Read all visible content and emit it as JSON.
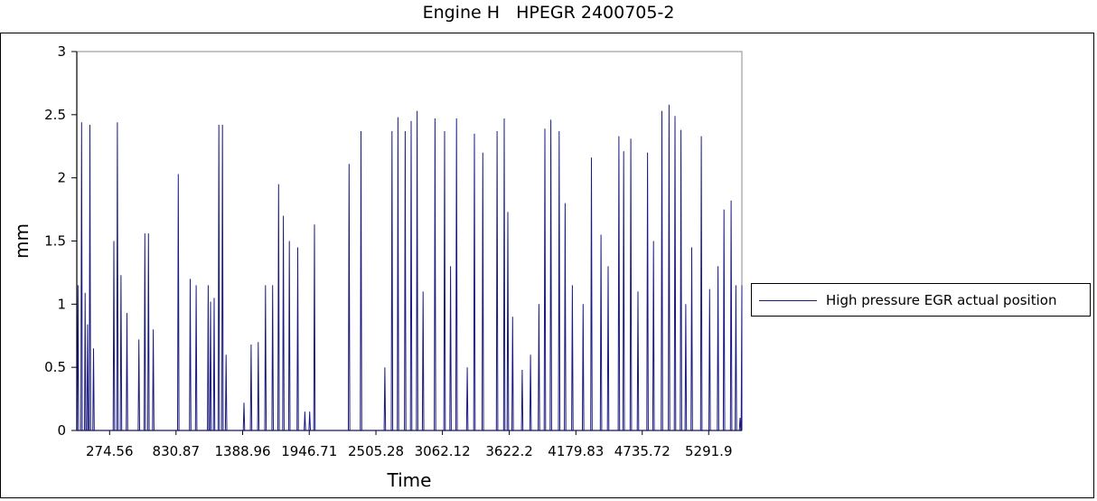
{
  "chart_data": {
    "type": "line",
    "title": "Engine H   HPEGR 2400705-2",
    "xlabel": "Time",
    "ylabel": "mm",
    "ylim": [
      0,
      3
    ],
    "yticks": [
      0,
      0.5,
      1,
      1.5,
      2,
      2.5,
      3
    ],
    "yticklabels": [
      "0",
      "0.5",
      "1",
      "1.5",
      "2",
      "2.5",
      "3"
    ],
    "xlim": [
      0,
      5570
    ],
    "xtick_positions": [
      274.56,
      830.87,
      1388.96,
      1946.71,
      2505.28,
      3062.12,
      3622.2,
      4179.83,
      4735.72,
      5291.9
    ],
    "xticklabels": [
      "274.56",
      "830.87",
      "1388.96",
      "1946.71",
      "2505.28",
      "3062.12",
      "3622.2",
      "4179.83",
      "4735.72",
      "5291.9"
    ],
    "grid": false,
    "legend_position": "right",
    "series": [
      {
        "name": "High pressure EGR actual position",
        "color": "#1a1a80",
        "peaks": [
          [
            10,
            1.15
          ],
          [
            40,
            2.44
          ],
          [
            70,
            1.09
          ],
          [
            90,
            0.84
          ],
          [
            110,
            2.42
          ],
          [
            140,
            0.65
          ],
          [
            310,
            1.5
          ],
          [
            340,
            2.44
          ],
          [
            370,
            1.23
          ],
          [
            420,
            0.93
          ],
          [
            520,
            0.72
          ],
          [
            570,
            1.56
          ],
          [
            600,
            1.56
          ],
          [
            640,
            0.8
          ],
          [
            850,
            2.03
          ],
          [
            950,
            1.2
          ],
          [
            1000,
            1.15
          ],
          [
            1100,
            1.15
          ],
          [
            1120,
            1.02
          ],
          [
            1150,
            1.05
          ],
          [
            1190,
            2.42
          ],
          [
            1220,
            2.42
          ],
          [
            1250,
            0.6
          ],
          [
            1400,
            0.22
          ],
          [
            1460,
            0.68
          ],
          [
            1520,
            0.7
          ],
          [
            1580,
            1.15
          ],
          [
            1640,
            1.15
          ],
          [
            1690,
            1.95
          ],
          [
            1730,
            1.7
          ],
          [
            1780,
            1.5
          ],
          [
            1850,
            1.45
          ],
          [
            1910,
            0.15
          ],
          [
            1950,
            0.15
          ],
          [
            1990,
            1.63
          ],
          [
            2280,
            2.11
          ],
          [
            2380,
            2.37
          ],
          [
            2580,
            0.5
          ],
          [
            2640,
            2.37
          ],
          [
            2690,
            2.48
          ],
          [
            2750,
            2.37
          ],
          [
            2800,
            2.45
          ],
          [
            2850,
            2.53
          ],
          [
            2900,
            1.1
          ],
          [
            3000,
            2.47
          ],
          [
            3080,
            2.37
          ],
          [
            3130,
            1.3
          ],
          [
            3180,
            2.47
          ],
          [
            3270,
            0.5
          ],
          [
            3330,
            2.35
          ],
          [
            3400,
            2.2
          ],
          [
            3520,
            2.37
          ],
          [
            3580,
            2.47
          ],
          [
            3610,
            1.73
          ],
          [
            3650,
            0.9
          ],
          [
            3730,
            0.48
          ],
          [
            3800,
            0.6
          ],
          [
            3870,
            1.0
          ],
          [
            3920,
            2.39
          ],
          [
            3970,
            2.46
          ],
          [
            4040,
            2.37
          ],
          [
            4090,
            1.8
          ],
          [
            4150,
            1.15
          ],
          [
            4240,
            1.0
          ],
          [
            4310,
            2.16
          ],
          [
            4390,
            1.55
          ],
          [
            4450,
            1.3
          ],
          [
            4540,
            2.33
          ],
          [
            4580,
            2.21
          ],
          [
            4640,
            2.31
          ],
          [
            4700,
            1.1
          ],
          [
            4780,
            2.2
          ],
          [
            4830,
            1.5
          ],
          [
            4900,
            2.53
          ],
          [
            4960,
            2.58
          ],
          [
            5010,
            2.49
          ],
          [
            5060,
            2.38
          ],
          [
            5100,
            1.0
          ],
          [
            5150,
            1.45
          ],
          [
            5230,
            2.33
          ],
          [
            5300,
            1.12
          ],
          [
            5370,
            1.3
          ],
          [
            5420,
            1.75
          ],
          [
            5480,
            1.82
          ],
          [
            5520,
            1.15
          ],
          [
            5555,
            0.1
          ],
          [
            5570,
            1.15
          ]
        ]
      }
    ]
  }
}
